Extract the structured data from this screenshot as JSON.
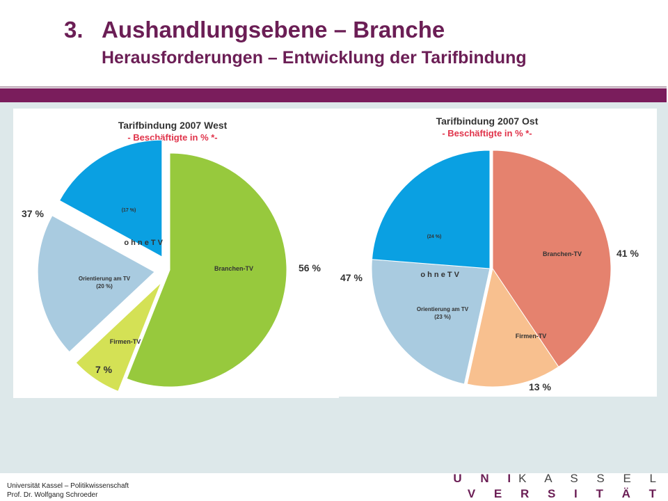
{
  "slide": {
    "number": "3.",
    "title": "Aushandlungsebene – Branche",
    "subtitle": "Herausforderungen – Entwicklung der Tarifbindung"
  },
  "footer": {
    "line1": "Universität Kassel – Politikwissenschaft",
    "line2": "Prof. Dr. Wolfgang Schroeder"
  },
  "logo": {
    "line1_accent": "U N I",
    "line1_rest": "K A S S E L",
    "line2": "V E R S I T Ä T"
  },
  "colors": {
    "brand": "#6b1e55",
    "background": "#dde8ea"
  },
  "chart_data": [
    {
      "type": "pie",
      "title": "Tarifbindung 2007 West",
      "subtitle": "- Beschäftigte in % *-",
      "group_label": "o h n e   T V",
      "slices": [
        {
          "label": "Branchen-TV",
          "value": 56,
          "outer_label": "56 %",
          "color": "#97c93d",
          "exploded": false
        },
        {
          "label": "Firmen-TV",
          "value": 7,
          "outer_label": "7 %",
          "color": "#d4e155",
          "exploded": true
        },
        {
          "label": "Orientierung am TV",
          "sub": "(20 %)",
          "value": 20,
          "color": "#a9cbe0",
          "exploded": true
        },
        {
          "label": "",
          "sub": "(17 %)",
          "value": 17,
          "color": "#0aa0e2",
          "exploded": true
        }
      ],
      "group_total_label": "37 %"
    },
    {
      "type": "pie",
      "title": "Tarifbindung 2007 Ost",
      "subtitle": "- Beschäftigte in % *-",
      "group_label": "o h n e   T V",
      "slices": [
        {
          "label": "Branchen-TV",
          "value": 41,
          "outer_label": "41 %",
          "color": "#e5826e",
          "exploded": false
        },
        {
          "label": "Firmen-TV",
          "value": 13,
          "outer_label": "13 %",
          "color": "#f8c08f",
          "exploded": false
        },
        {
          "label": "Orientierung am TV",
          "sub": "(23 %)",
          "value": 23,
          "color": "#a9cbe0",
          "exploded": true
        },
        {
          "label": "",
          "sub": "(24 %)",
          "value": 24,
          "color": "#0aa0e2",
          "exploded": true
        }
      ],
      "group_total_label": "47 %"
    }
  ]
}
